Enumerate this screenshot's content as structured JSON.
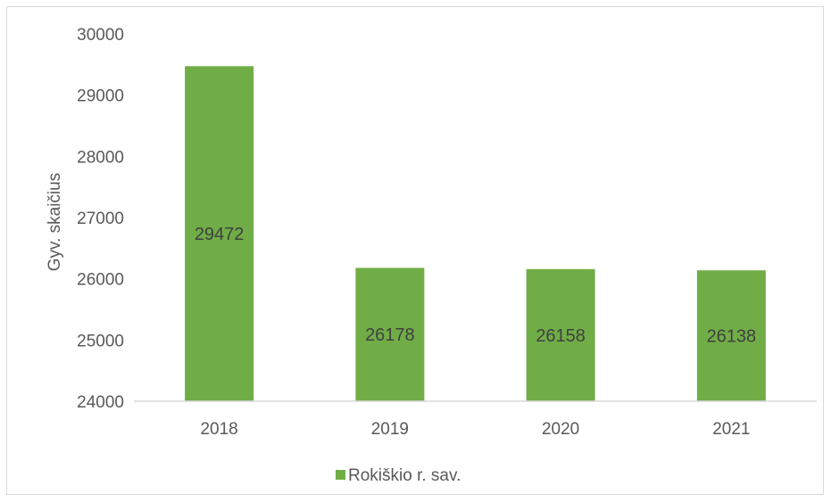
{
  "chart_data": {
    "type": "bar",
    "categories": [
      "2018",
      "2019",
      "2020",
      "2021"
    ],
    "series": [
      {
        "name": "Rokiškio r. sav.",
        "values": [
          29472,
          26178,
          26158,
          26138
        ],
        "color": "#70ad47"
      }
    ],
    "data_labels": [
      "29472",
      "26178",
      "26158",
      "26138"
    ],
    "ylabel": "Gyv. skaičius",
    "xlabel": "",
    "ylim": [
      24000,
      30000
    ],
    "yticks": [
      24000,
      25000,
      26000,
      27000,
      28000,
      29000,
      30000
    ],
    "ytick_labels": [
      "24000",
      "25000",
      "26000",
      "27000",
      "28000",
      "29000",
      "30000"
    ],
    "grid": false,
    "legend_position": "bottom"
  }
}
